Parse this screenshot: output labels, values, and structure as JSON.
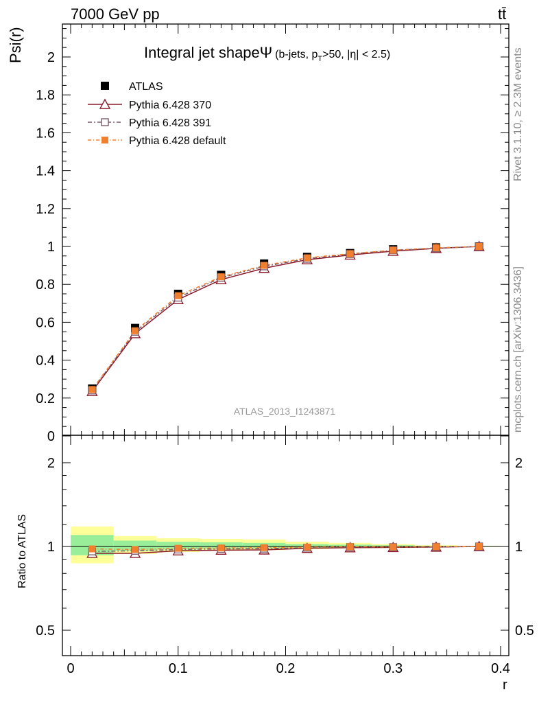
{
  "header": {
    "left": "7000 GeV pp",
    "right": "tt̄"
  },
  "side_labels": {
    "rivet": "Rivet 3.1.10, ≥ 2.3M events",
    "mcplots": "mcplots.cern.ch [arXiv:1306.3436]"
  },
  "chart_data": [
    {
      "type": "line",
      "panel": "main",
      "title": "Integral jet shapeΨ",
      "title_suffix": "(b-jets, p",
      "title_subscript": "T",
      "title_suffix2": ">50, |η| < 2.5)",
      "watermark": "ATLAS_2013_I1243871",
      "xlabel": "r",
      "ylabel": "Psi(r)",
      "xlim": [
        0,
        0.4
      ],
      "ylim": [
        0,
        2.2
      ],
      "yticks": [
        0,
        0.2,
        0.4,
        0.6,
        0.8,
        1,
        1.2,
        1.4,
        1.6,
        1.8,
        2
      ],
      "ytick_labels": [
        "0",
        "0.2",
        "0.4",
        "0.6",
        "0.8",
        "1",
        "1.2",
        "1.4",
        "1.6",
        "1.8",
        "2"
      ],
      "x": [
        0.02,
        0.06,
        0.1,
        0.14,
        0.18,
        0.22,
        0.26,
        0.3,
        0.34,
        0.38
      ],
      "legend_position": "top-left",
      "series": [
        {
          "name": "ATLAS",
          "style": "data",
          "color": "#000000",
          "values": [
            0.25,
            0.57,
            0.75,
            0.85,
            0.91,
            0.945,
            0.965,
            0.985,
            0.995,
            1.0
          ]
        },
        {
          "name": "Pythia 6.428 370",
          "style": "triangle",
          "color": "#8b1a2b",
          "values": [
            0.235,
            0.54,
            0.72,
            0.825,
            0.885,
            0.93,
            0.955,
            0.975,
            0.99,
            1.0
          ]
        },
        {
          "name": "Pythia 6.428 391",
          "style": "square-open",
          "color": "#7a5a6a",
          "values": [
            0.24,
            0.55,
            0.73,
            0.835,
            0.895,
            0.935,
            0.96,
            0.98,
            0.99,
            1.0
          ]
        },
        {
          "name": "Pythia 6.428 default",
          "style": "square-filled",
          "color": "#f08030",
          "values": [
            0.245,
            0.555,
            0.74,
            0.84,
            0.9,
            0.94,
            0.962,
            0.98,
            0.993,
            1.0
          ]
        }
      ]
    },
    {
      "type": "line",
      "panel": "ratio",
      "ylabel": "Ratio to ATLAS",
      "xlabel": "r",
      "xlim": [
        0,
        0.4
      ],
      "ylim": [
        0.4,
        2.4
      ],
      "yscale": "log",
      "yticks": [
        0.5,
        1,
        2
      ],
      "ytick_labels": [
        "0.5",
        "1",
        "2"
      ],
      "xticks": [
        0,
        0.1,
        0.2,
        0.3,
        0.4
      ],
      "xtick_labels": [
        "0",
        "0.1",
        "0.2",
        "0.3",
        "0.4"
      ],
      "x": [
        0.02,
        0.06,
        0.1,
        0.14,
        0.18,
        0.22,
        0.26,
        0.3,
        0.34,
        0.38
      ],
      "bands": {
        "x_edges": [
          0,
          0.04,
          0.08,
          0.12,
          0.16,
          0.2,
          0.24,
          0.28,
          0.32,
          0.36,
          0.4
        ],
        "total_low": [
          0.87,
          0.94,
          0.955,
          0.965,
          0.97,
          0.978,
          0.985,
          0.99,
          0.995,
          0.998
        ],
        "total_high": [
          1.18,
          1.09,
          1.07,
          1.065,
          1.06,
          1.04,
          1.03,
          1.02,
          1.01,
          1.005
        ],
        "stat_low": [
          0.93,
          0.965,
          0.975,
          0.98,
          0.983,
          0.988,
          0.992,
          0.995,
          0.997,
          0.999
        ],
        "stat_high": [
          1.1,
          1.05,
          1.04,
          1.035,
          1.03,
          1.02,
          1.015,
          1.01,
          1.006,
          1.003
        ]
      },
      "series": [
        {
          "name": "Pythia 6.428 370",
          "style": "triangle",
          "color": "#8b1a2b",
          "values": [
            0.945,
            0.945,
            0.965,
            0.97,
            0.972,
            0.985,
            0.99,
            0.992,
            0.995,
            1.0
          ]
        },
        {
          "name": "Pythia 6.428 391",
          "style": "square-open",
          "color": "#7a5a6a",
          "values": [
            0.96,
            0.965,
            0.975,
            0.98,
            0.982,
            0.99,
            0.995,
            0.995,
            0.997,
            1.0
          ]
        },
        {
          "name": "Pythia 6.428 default",
          "style": "square-filled",
          "color": "#f08030",
          "values": [
            0.98,
            0.975,
            0.985,
            0.988,
            0.99,
            0.995,
            0.998,
            0.996,
            0.998,
            1.0
          ]
        }
      ]
    }
  ]
}
